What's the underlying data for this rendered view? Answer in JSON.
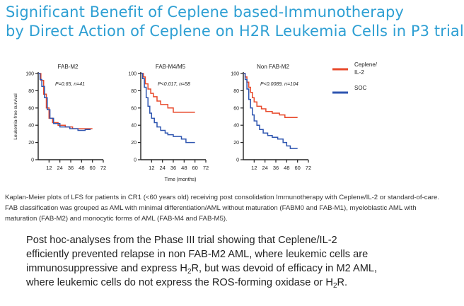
{
  "slide": {
    "title_line1": "Significant Benefit of Ceplene based-Immunotherapy",
    "title_line2": "by Direct Action of Ceplene on H2R Leukemia Cells in P3 trial",
    "caption": "Kaplan-Meier plots of LFS for patients in CR1 (<60 years old) receiving post consolidation Immunotherapy with Ceplene/IL-2 or standard-of-care. FAB classification was grouped as AML with minimal differentiation/AML without maturation (FABM0 and FAB-M1), myeloblastic AML with maturation (FAB-M2) and monocytic forms of AML (FAB-M4 and FAB-M5).",
    "body_line1": "Post hoc-analyses from the Phase III trial showing that Ceplene/IL-2",
    "body_line2": "efficiently prevented relapse in non FAB-M2 AML, where leukemic cells are",
    "body_line3_pre": "immunosuppressive and express H",
    "body_line3_sub": "2",
    "body_line3_post": "R, but was devoid of efficacy in M2 AML,",
    "body_line4_pre": "where leukemic cells do not express the ROS-forming oxidase or H",
    "body_line4_sub": "2",
    "body_line4_post": "R."
  },
  "chart_data": [
    {
      "type": "line",
      "title": "FAB-M2",
      "annotation": "P=0.65, n=41",
      "ylabel": "Leukemia-free survival",
      "xticks": [
        "12",
        "24",
        "36",
        "48",
        "60",
        "72"
      ],
      "yticks": [
        "0",
        "20",
        "40",
        "60",
        "80",
        "100"
      ],
      "xlim": [
        0,
        72
      ],
      "ylim": [
        0,
        100
      ],
      "series": [
        {
          "name": "Ceplene/ IL-2",
          "color": "#e8492b",
          "points": [
            [
              0,
              100
            ],
            [
              3,
              100
            ],
            [
              3,
              92
            ],
            [
              6,
              92
            ],
            [
              6,
              76
            ],
            [
              9,
              76
            ],
            [
              9,
              60
            ],
            [
              12,
              60
            ],
            [
              12,
              48
            ],
            [
              16,
              48
            ],
            [
              16,
              43
            ],
            [
              22,
              43
            ],
            [
              22,
              40
            ],
            [
              30,
              40
            ],
            [
              30,
              38
            ],
            [
              38,
              38
            ],
            [
              38,
              36
            ],
            [
              60,
              36
            ]
          ]
        },
        {
          "name": "SOC",
          "color": "#2e55b0",
          "points": [
            [
              0,
              100
            ],
            [
              2,
              100
            ],
            [
              2,
              93
            ],
            [
              4,
              93
            ],
            [
              4,
              85
            ],
            [
              7,
              85
            ],
            [
              7,
              72
            ],
            [
              10,
              72
            ],
            [
              10,
              58
            ],
            [
              13,
              58
            ],
            [
              13,
              48
            ],
            [
              17,
              48
            ],
            [
              17,
              42
            ],
            [
              24,
              42
            ],
            [
              24,
              38
            ],
            [
              35,
              38
            ],
            [
              35,
              36
            ],
            [
              44,
              36
            ],
            [
              44,
              34
            ],
            [
              52,
              34
            ],
            [
              52,
              35
            ],
            [
              58,
              35
            ]
          ]
        }
      ]
    },
    {
      "type": "line",
      "title": "FAB-M4/M5",
      "annotation": "P<0.017, n=58",
      "xlabel": "Time (months)",
      "xticks": [
        "12",
        "24",
        "36",
        "48",
        "60",
        "72"
      ],
      "yticks": [
        "0",
        "20",
        "40",
        "60",
        "80",
        "100"
      ],
      "xlim": [
        0,
        72
      ],
      "ylim": [
        0,
        100
      ],
      "series": [
        {
          "name": "Ceplene/ IL-2",
          "color": "#e8492b",
          "points": [
            [
              0,
              100
            ],
            [
              3,
              100
            ],
            [
              3,
              96
            ],
            [
              5,
              96
            ],
            [
              5,
              88
            ],
            [
              8,
              88
            ],
            [
              8,
              82
            ],
            [
              11,
              82
            ],
            [
              11,
              77
            ],
            [
              14,
              77
            ],
            [
              14,
              73
            ],
            [
              18,
              73
            ],
            [
              18,
              68
            ],
            [
              22,
              68
            ],
            [
              22,
              64
            ],
            [
              30,
              64
            ],
            [
              30,
              60
            ],
            [
              36,
              60
            ],
            [
              36,
              55
            ],
            [
              60,
              55
            ]
          ]
        },
        {
          "name": "SOC",
          "color": "#2e55b0",
          "points": [
            [
              0,
              100
            ],
            [
              2,
              100
            ],
            [
              2,
              94
            ],
            [
              4,
              94
            ],
            [
              4,
              84
            ],
            [
              6,
              84
            ],
            [
              6,
              72
            ],
            [
              8,
              72
            ],
            [
              8,
              62
            ],
            [
              10,
              62
            ],
            [
              10,
              54
            ],
            [
              12,
              54
            ],
            [
              12,
              48
            ],
            [
              15,
              48
            ],
            [
              15,
              43
            ],
            [
              18,
              43
            ],
            [
              18,
              38
            ],
            [
              22,
              38
            ],
            [
              22,
              34
            ],
            [
              27,
              34
            ],
            [
              27,
              31
            ],
            [
              30,
              31
            ],
            [
              30,
              29
            ],
            [
              36,
              29
            ],
            [
              36,
              27
            ],
            [
              45,
              27
            ],
            [
              45,
              24
            ],
            [
              50,
              24
            ],
            [
              50,
              20
            ],
            [
              60,
              20
            ]
          ]
        }
      ]
    },
    {
      "type": "line",
      "title": "Non FAB-M2",
      "annotation": "P<0.0089, n=104",
      "xticks": [
        "12",
        "24",
        "36",
        "48",
        "60",
        "72"
      ],
      "yticks": [
        "0",
        "20",
        "40",
        "60",
        "80",
        "100"
      ],
      "xlim": [
        0,
        72
      ],
      "ylim": [
        0,
        100
      ],
      "series": [
        {
          "name": "Ceplene/ IL-2",
          "color": "#e8492b",
          "points": [
            [
              0,
              100
            ],
            [
              2,
              100
            ],
            [
              2,
              96
            ],
            [
              4,
              96
            ],
            [
              4,
              90
            ],
            [
              6,
              90
            ],
            [
              6,
              84
            ],
            [
              8,
              84
            ],
            [
              8,
              78
            ],
            [
              10,
              78
            ],
            [
              10,
              72
            ],
            [
              12,
              72
            ],
            [
              12,
              67
            ],
            [
              15,
              67
            ],
            [
              15,
              62
            ],
            [
              20,
              62
            ],
            [
              20,
              59
            ],
            [
              25,
              59
            ],
            [
              25,
              56
            ],
            [
              32,
              56
            ],
            [
              32,
              54
            ],
            [
              40,
              54
            ],
            [
              40,
              52
            ],
            [
              46,
              52
            ],
            [
              46,
              49
            ],
            [
              60,
              49
            ]
          ]
        },
        {
          "name": "SOC",
          "color": "#2e55b0",
          "points": [
            [
              0,
              100
            ],
            [
              2,
              100
            ],
            [
              2,
              93
            ],
            [
              4,
              93
            ],
            [
              4,
              82
            ],
            [
              6,
              82
            ],
            [
              6,
              70
            ],
            [
              8,
              70
            ],
            [
              8,
              60
            ],
            [
              10,
              60
            ],
            [
              10,
              52
            ],
            [
              12,
              52
            ],
            [
              12,
              45
            ],
            [
              15,
              45
            ],
            [
              15,
              40
            ],
            [
              18,
              40
            ],
            [
              18,
              35
            ],
            [
              22,
              35
            ],
            [
              22,
              31
            ],
            [
              27,
              31
            ],
            [
              27,
              28
            ],
            [
              32,
              28
            ],
            [
              32,
              26
            ],
            [
              38,
              26
            ],
            [
              38,
              24
            ],
            [
              44,
              24
            ],
            [
              44,
              20
            ],
            [
              48,
              20
            ],
            [
              48,
              16
            ],
            [
              52,
              16
            ],
            [
              52,
              13
            ],
            [
              60,
              13
            ]
          ]
        }
      ]
    }
  ],
  "legend": {
    "items": [
      {
        "label_line1": "Ceplene/",
        "label_line2": "IL-2",
        "color": "#e8492b"
      },
      {
        "label_line1": "SOC",
        "label_line2": "",
        "color": "#2e55b0"
      }
    ]
  }
}
